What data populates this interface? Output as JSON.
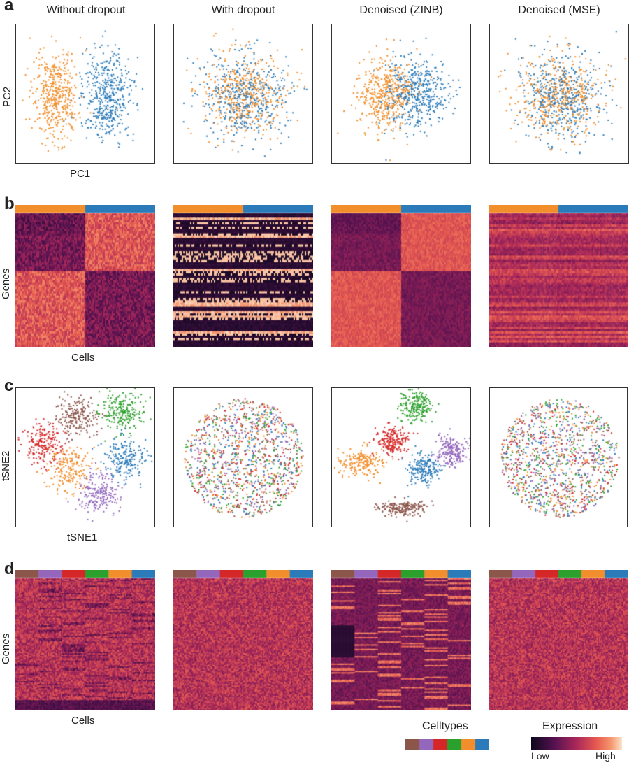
{
  "panel_letters": [
    "a",
    "b",
    "c",
    "d"
  ],
  "columns": [
    "Without dropout",
    "With dropout",
    "Denoised (ZINB)",
    "Denoised (MSE)"
  ],
  "labels": {
    "pc_x": "PC1",
    "pc_y": "PC2",
    "heat_x": "Cells",
    "heat_y": "Genes",
    "tsne_x": "tSNE1",
    "tsne_y": "tSNE2"
  },
  "legend": {
    "celltypes_title": "Celltypes",
    "expression_title": "Expression",
    "low": "Low",
    "high": "High"
  },
  "colors": {
    "orange": "#f28e2b",
    "blue": "#2b7bba",
    "red": "#d62728",
    "green": "#2ca02c",
    "purple": "#9467bd",
    "brown": "#8c564b"
  },
  "celltype_colors": [
    "#8c564b",
    "#9467bd",
    "#d62728",
    "#2ca02c",
    "#f28e2b",
    "#2b7bba"
  ]
}
